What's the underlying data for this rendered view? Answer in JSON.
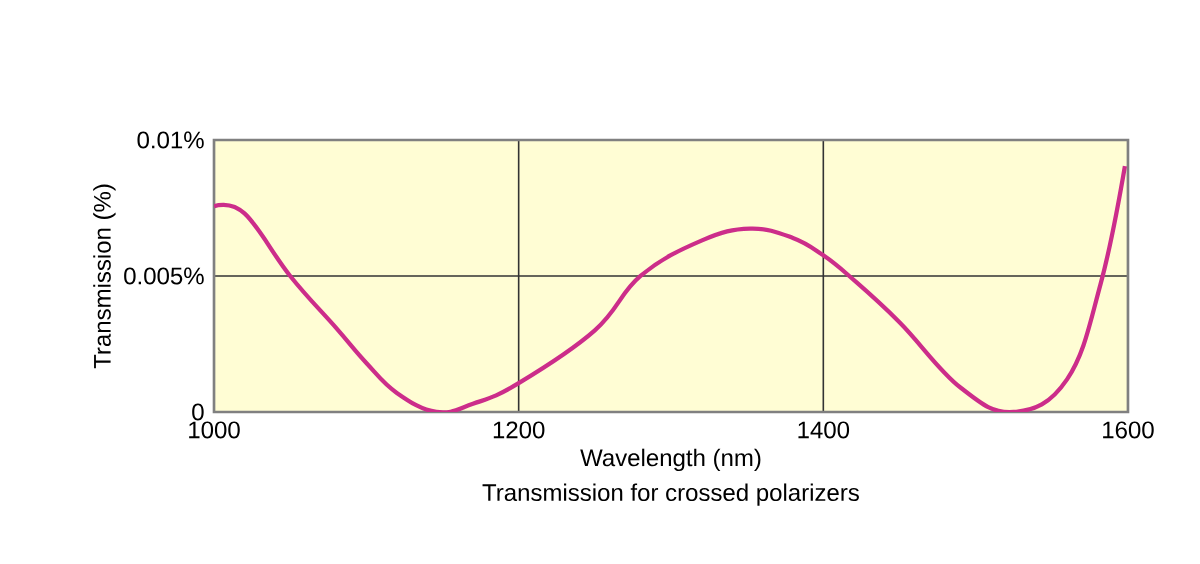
{
  "chart_data": {
    "type": "line",
    "xlabel": "Wavelength (nm)",
    "ylabel": "Transmission (%)",
    "annotations": [
      "Transmission for crossed polarizers"
    ],
    "x": [
      1000,
      1020,
      1050,
      1080,
      1100,
      1120,
      1146,
      1170,
      1200,
      1250,
      1280,
      1320,
      1352,
      1380,
      1400,
      1417,
      1450,
      1490,
      1525,
      1560,
      1582,
      1598
    ],
    "series": [
      {
        "color": "#cc2d8a",
        "values": [
          0.00756,
          0.0073,
          0.005,
          0.0031,
          0.0018,
          0.0007,
          0.0,
          0.0003,
          0.00106,
          0.003,
          0.005,
          0.0063,
          0.00674,
          0.0064,
          0.00576,
          0.005,
          0.0033,
          0.0009,
          0.0,
          0.0012,
          0.0047,
          0.00904
        ]
      }
    ],
    "xlim": [
      1000,
      1600
    ],
    "xticks": [
      1000,
      1200,
      1400,
      1600
    ],
    "ylim": [
      0,
      0.01
    ],
    "yticks": [
      {
        "value": 0,
        "label": "0"
      },
      {
        "value": 0.005,
        "label": "0.005%"
      },
      {
        "value": 0.01,
        "label": "0.01%"
      }
    ],
    "grid": true
  }
}
